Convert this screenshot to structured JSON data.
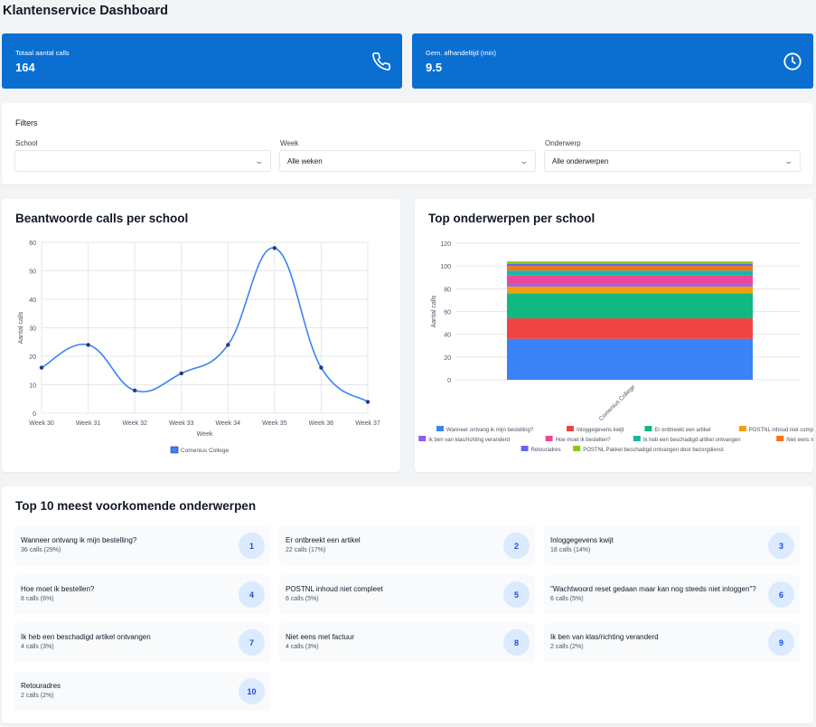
{
  "header": {
    "title": "Klantenservice Dashboard"
  },
  "stats": [
    {
      "label": "Totaal aantal calls",
      "value": "164",
      "icon": "phone-icon"
    },
    {
      "label": "Gem. afhandeltijd (min)",
      "value": "9.5",
      "icon": "clock-icon"
    }
  ],
  "filters": {
    "title": "Filters",
    "school": {
      "label": "School",
      "value": ""
    },
    "week": {
      "label": "Week",
      "value": "Alle weken"
    },
    "topic": {
      "label": "Onderwerp",
      "value": "Alle onderwerpen"
    }
  },
  "charts": {
    "line_title": "Beantwoorde calls per school",
    "bar_title": "Top onderwerpen per school"
  },
  "top10": {
    "title": "Top 10 meest voorkomende onderwerpen",
    "items": [
      {
        "name": "Wanneer ontvang ik mijn bestelling?",
        "count": "36 calls (29%)",
        "rank": "1"
      },
      {
        "name": "Er ontbreekt een artikel",
        "count": "22 calls (17%)",
        "rank": "2"
      },
      {
        "name": "Inloggegevens kwijt",
        "count": "18 calls (14%)",
        "rank": "3"
      },
      {
        "name": "Hoe moet ik bestellen?",
        "count": "8 calls (6%)",
        "rank": "4"
      },
      {
        "name": "POSTNL inhoud niet compleet",
        "count": "6 calls (5%)",
        "rank": "5"
      },
      {
        "name": "\"Wachtwoord reset gedaan maar kan nog steeds niet inloggen\"?",
        "count": "6 calls (5%)",
        "rank": "6"
      },
      {
        "name": "Ik heb een beschadigd artikel ontvangen",
        "count": "4 calls (3%)",
        "rank": "7"
      },
      {
        "name": "Niet eens met factuur",
        "count": "4 calls (3%)",
        "rank": "8"
      },
      {
        "name": "Ik ben van klas/richting veranderd",
        "count": "2 calls (2%)",
        "rank": "9"
      },
      {
        "name": "Retouradres",
        "count": "2 calls (2%)",
        "rank": "10"
      }
    ]
  },
  "chart_data": [
    {
      "type": "line",
      "title": "Beantwoorde calls per school",
      "xlabel": "Week",
      "ylabel": "Aantal calls",
      "categories": [
        "Week 30",
        "Week 31",
        "Week 32",
        "Week 33",
        "Week 34",
        "Week 35",
        "Week 36",
        "Week 37"
      ],
      "ylim": [
        0,
        60
      ],
      "yticks": [
        0,
        10,
        20,
        30,
        40,
        50,
        60
      ],
      "grid": true,
      "legend": "bottom",
      "series": [
        {
          "name": "Comenius College",
          "color": "#3b82f6",
          "values": [
            16,
            24,
            8,
            14,
            24,
            58,
            16,
            4
          ]
        }
      ]
    },
    {
      "type": "bar",
      "stacked": true,
      "title": "Top onderwerpen per school",
      "ylabel": "Aantal calls",
      "categories": [
        "Comenius College"
      ],
      "ylim": [
        0,
        120
      ],
      "yticks": [
        0,
        20,
        40,
        60,
        80,
        100,
        120
      ],
      "grid": true,
      "legend": "bottom",
      "series": [
        {
          "name": "Wanneer ontvang ik mijn bestelling?",
          "color": "#3b82f6",
          "values": [
            36
          ]
        },
        {
          "name": "Inloggegevens kwijt",
          "color": "#ef4444",
          "values": [
            18
          ]
        },
        {
          "name": "Er ontbreekt een artikel",
          "color": "#10b981",
          "values": [
            22
          ]
        },
        {
          "name": "POSTNL inhoud niet compleet",
          "color": "#f59e0b",
          "values": [
            6
          ]
        },
        {
          "name": "Ik ben van klas/richting veranderd",
          "color": "#8b5cf6",
          "values": [
            2
          ]
        },
        {
          "name": "Hoe moet ik bestellen?",
          "color": "#ec4899",
          "values": [
            8
          ]
        },
        {
          "name": "Ik heb een beschadigd artikel ontvangen",
          "color": "#14b8a6",
          "values": [
            4
          ]
        },
        {
          "name": "Niet eens met factuur",
          "color": "#f97316",
          "values": [
            4
          ]
        },
        {
          "name": "Retouradres",
          "color": "#6366f1",
          "values": [
            2
          ]
        },
        {
          "name": "POSTNL Pakket beschadigd ontvangen door bezorgdienst",
          "color": "#84cc16",
          "values": [
            2
          ]
        }
      ]
    }
  ]
}
